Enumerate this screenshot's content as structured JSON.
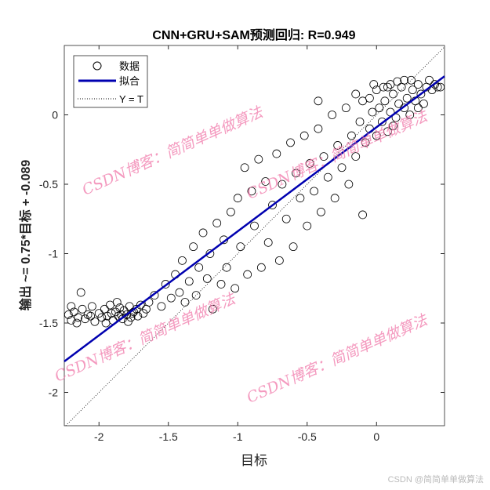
{
  "chart_data": {
    "type": "scatter",
    "title": "CNN+GRU+SAM预测回归: R=0.949",
    "xlabel": "目标",
    "ylabel": "输出 ~= 0.75*目标 + -0.089",
    "xlim": [
      -2.25,
      0.49
    ],
    "ylim": [
      -2.24,
      0.5
    ],
    "xticks": [
      -2,
      -1.5,
      -1,
      -0.5,
      0
    ],
    "yticks": [
      -2,
      -1.5,
      -1,
      -0.5,
      0
    ],
    "xtick_labels": [
      "-2",
      "-1.5",
      "-1",
      "-0.5",
      "0"
    ],
    "ytick_labels": [
      "-2",
      "-1.5",
      "-1",
      "-0.5",
      "0"
    ],
    "grid": false,
    "legend_position": "top-left",
    "legend": [
      "数据",
      "拟合",
      "Y = T"
    ],
    "fit": {
      "slope": 0.75,
      "intercept": -0.089,
      "color": "#0000b0"
    },
    "points": [
      [
        -2.22,
        -1.44
      ],
      [
        -2.2,
        -1.48
      ],
      [
        -2.18,
        -1.42
      ],
      [
        -2.15,
        -1.46
      ],
      [
        -2.12,
        -1.4
      ],
      [
        -2.1,
        -1.47
      ],
      [
        -2.08,
        -1.44
      ],
      [
        -2.05,
        -1.38
      ],
      [
        -2.03,
        -1.49
      ],
      [
        -2.0,
        -1.43
      ],
      [
        -1.98,
        -1.46
      ],
      [
        -1.96,
        -1.4
      ],
      [
        -1.94,
        -1.45
      ],
      [
        -1.92,
        -1.37
      ],
      [
        -1.9,
        -1.48
      ],
      [
        -1.88,
        -1.42
      ],
      [
        -1.86,
        -1.45
      ],
      [
        -1.85,
        -1.39
      ],
      [
        -1.83,
        -1.47
      ],
      [
        -1.82,
        -1.41
      ],
      [
        -1.8,
        -1.44
      ],
      [
        -1.78,
        -1.38
      ],
      [
        -1.77,
        -1.46
      ],
      [
        -1.75,
        -1.42
      ],
      [
        -1.73,
        -1.4
      ],
      [
        -1.72,
        -1.45
      ],
      [
        -1.7,
        -1.37
      ],
      [
        -1.68,
        -1.43
      ],
      [
        -1.66,
        -1.4
      ],
      [
        -1.64,
        -1.35
      ],
      [
        -2.13,
        -1.28
      ],
      [
        -2.2,
        -1.38
      ],
      [
        -1.95,
        -1.5
      ],
      [
        -2.06,
        -1.45
      ],
      [
        -1.87,
        -1.35
      ],
      [
        -1.79,
        -1.49
      ],
      [
        -2.16,
        -1.5
      ],
      [
        -1.91,
        -1.43
      ],
      [
        -1.84,
        -1.44
      ],
      [
        -1.76,
        -1.43
      ],
      [
        -1.6,
        -1.3
      ],
      [
        -1.55,
        -1.38
      ],
      [
        -1.52,
        -1.22
      ],
      [
        -1.48,
        -1.32
      ],
      [
        -1.45,
        -1.15
      ],
      [
        -1.42,
        -1.28
      ],
      [
        -1.4,
        -1.05
      ],
      [
        -1.38,
        -1.35
      ],
      [
        -1.35,
        -1.2
      ],
      [
        -1.32,
        -0.95
      ],
      [
        -1.3,
        -1.3
      ],
      [
        -1.28,
        -1.1
      ],
      [
        -1.25,
        -0.85
      ],
      [
        -1.22,
        -1.18
      ],
      [
        -1.2,
        -1.0
      ],
      [
        -1.18,
        -1.4
      ],
      [
        -1.15,
        -0.78
      ],
      [
        -1.12,
        -1.22
      ],
      [
        -1.1,
        -0.9
      ],
      [
        -1.08,
        -1.1
      ],
      [
        -1.05,
        -0.7
      ],
      [
        -1.02,
        -1.25
      ],
      [
        -1.0,
        -0.6
      ],
      [
        -0.98,
        -0.95
      ],
      [
        -0.95,
        -0.38
      ],
      [
        -0.93,
        -1.15
      ],
      [
        -0.9,
        -0.55
      ],
      [
        -0.88,
        -0.8
      ],
      [
        -0.85,
        -0.32
      ],
      [
        -0.83,
        -1.1
      ],
      [
        -0.8,
        -0.48
      ],
      [
        -0.78,
        -0.92
      ],
      [
        -0.75,
        -0.65
      ],
      [
        -0.72,
        -0.28
      ],
      [
        -0.7,
        -1.05
      ],
      [
        -0.68,
        -0.5
      ],
      [
        -0.65,
        -0.75
      ],
      [
        -0.62,
        -0.2
      ],
      [
        -0.6,
        -0.95
      ],
      [
        -0.58,
        -0.42
      ],
      [
        -0.55,
        -0.6
      ],
      [
        -0.52,
        -0.15
      ],
      [
        -0.5,
        -0.8
      ],
      [
        -0.48,
        -0.35
      ],
      [
        -0.45,
        -0.55
      ],
      [
        -0.42,
        -0.1
      ],
      [
        -0.4,
        -0.7
      ],
      [
        -0.38,
        -0.3
      ],
      [
        -0.35,
        -0.45
      ],
      [
        -0.32,
        0.0
      ],
      [
        -0.3,
        -0.6
      ],
      [
        -0.28,
        -0.22
      ],
      [
        -0.25,
        -0.38
      ],
      [
        -0.22,
        0.05
      ],
      [
        -0.2,
        -0.5
      ],
      [
        -0.18,
        -0.15
      ],
      [
        -0.15,
        -0.3
      ],
      [
        -0.12,
        -0.05
      ],
      [
        -0.1,
        -0.72
      ],
      [
        -0.42,
        0.1
      ],
      [
        -0.08,
        -0.2
      ],
      [
        -0.05,
        -0.1
      ],
      [
        -0.03,
        0.02
      ],
      [
        0.0,
        -0.15
      ],
      [
        0.02,
        0.05
      ],
      [
        0.04,
        -0.05
      ],
      [
        0.06,
        0.1
      ],
      [
        0.08,
        -0.12
      ],
      [
        0.1,
        0.02
      ],
      [
        0.12,
        0.15
      ],
      [
        0.14,
        -0.02
      ],
      [
        0.16,
        0.08
      ],
      [
        0.18,
        0.2
      ],
      [
        0.2,
        0.05
      ],
      [
        0.22,
        0.12
      ],
      [
        0.24,
        0.0
      ],
      [
        0.26,
        0.18
      ],
      [
        0.28,
        0.1
      ],
      [
        0.3,
        0.22
      ],
      [
        0.32,
        0.15
      ],
      [
        0.34,
        0.08
      ],
      [
        0.36,
        0.2
      ],
      [
        0.38,
        0.25
      ],
      [
        0.4,
        0.18
      ],
      [
        0.42,
        0.22
      ],
      [
        0.44,
        0.2
      ],
      [
        0.46,
        0.2
      ],
      [
        0.0,
        0.18
      ],
      [
        -0.02,
        0.22
      ],
      [
        0.05,
        0.2
      ],
      [
        0.1,
        0.22
      ],
      [
        0.15,
        0.24
      ],
      [
        0.2,
        0.25
      ],
      [
        0.25,
        0.25
      ],
      [
        -0.1,
        0.1
      ],
      [
        -0.15,
        0.15
      ],
      [
        0.12,
        -0.08
      ],
      [
        0.3,
        0.05
      ],
      [
        0.08,
        0.2
      ],
      [
        -0.05,
        0.12
      ]
    ]
  },
  "watermark": "CSDN博客：简简单单做算法",
  "credit": "CSDN @简简单单做算法"
}
